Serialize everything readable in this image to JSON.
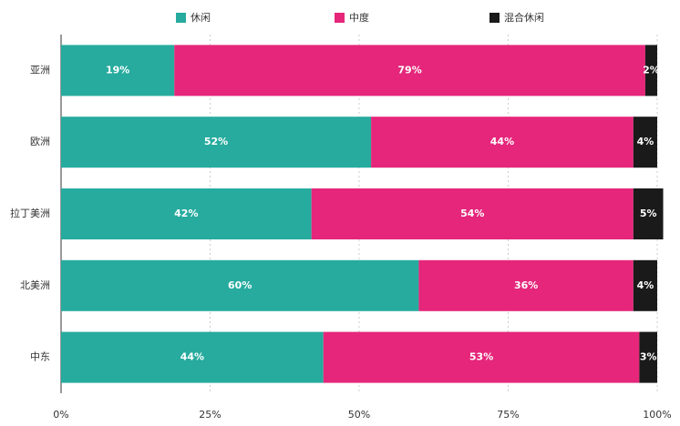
{
  "chart_data": {
    "type": "stacked_bar_horizontal",
    "categories": [
      "亚洲",
      "欧洲",
      "拉丁美洲",
      "北美洲",
      "中东"
    ],
    "series": [
      {
        "name": "休闲",
        "color": "#26ab9e",
        "values": [
          19,
          52,
          42,
          60,
          44
        ],
        "value_labels": [
          "19%",
          "52%",
          "42%",
          "60%",
          "44%"
        ]
      },
      {
        "name": "中度",
        "color": "#e5267a",
        "values": [
          79,
          44,
          54,
          36,
          53
        ],
        "value_labels": [
          "79%",
          "44%",
          "54%",
          "36%",
          "53%"
        ]
      },
      {
        "name": "混合休闲",
        "color": "#1a1a1a",
        "values": [
          2,
          4,
          5,
          4,
          3
        ],
        "value_labels": [
          "2%",
          "4%",
          "5%",
          "4%",
          "3%"
        ]
      }
    ],
    "xlim": [
      0,
      100
    ],
    "xticks": [
      {
        "value": 0,
        "label": "0%"
      },
      {
        "value": 25,
        "label": "25%"
      },
      {
        "value": 50,
        "label": "50%"
      },
      {
        "value": 75,
        "label": "75%"
      },
      {
        "value": 100,
        "label": "100%"
      }
    ],
    "grid": true
  }
}
